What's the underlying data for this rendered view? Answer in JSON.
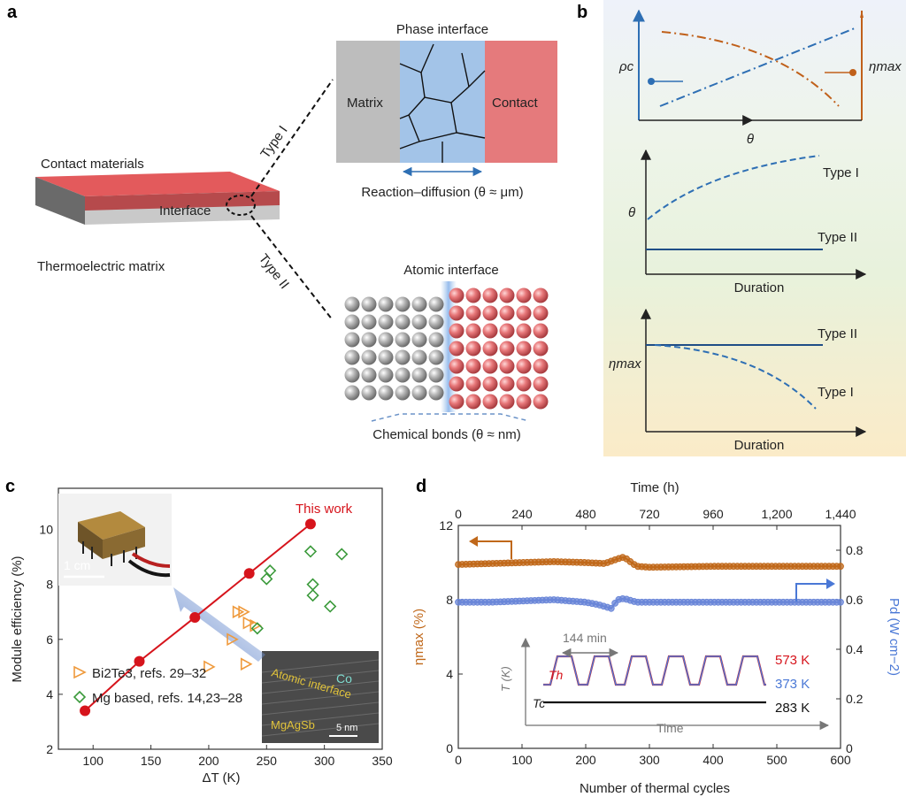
{
  "panels": {
    "a": "a",
    "b": "b",
    "c": "c",
    "d": "d"
  },
  "schematic": {
    "contact_materials": "Contact materials",
    "interface": "Interface",
    "thermoelectric_matrix": "Thermoelectric matrix",
    "type_i": "Type I",
    "type_ii": "Type II",
    "phase_interface_title": "Phase interface",
    "matrix": "Matrix",
    "contact": "Contact",
    "reaction_diffusion": "Reaction–diffusion (θ ≈ μm)",
    "atomic_interface_title": "Atomic interface",
    "chemical_bonds": "Chemical bonds (θ ≈ nm)",
    "colors": {
      "contact": "#e36466",
      "matrix": "#bdbdbd",
      "interface": "#a3c4e8"
    }
  },
  "chart_data": [
    {
      "type": "line",
      "panel": "b",
      "series": [
        {
          "name": "ρc",
          "trend": "increasing",
          "color": "#2e6fb4"
        },
        {
          "name": "ηmax",
          "trend": "decreasing",
          "color": "#c0601a"
        }
      ],
      "xlabel": "θ",
      "ylabel": "ρc",
      "y2label": "ηmax"
    },
    {
      "type": "line",
      "panel": "b",
      "series": [
        {
          "name": "Type I",
          "trend": "increasing"
        },
        {
          "name": "Type II",
          "trend": "constant"
        }
      ],
      "xlabel": "Duration",
      "ylabel": "θ"
    },
    {
      "type": "line",
      "panel": "b",
      "series": [
        {
          "name": "Type II",
          "trend": "constant"
        },
        {
          "name": "Type I",
          "trend": "decreasing"
        }
      ],
      "xlabel": "Duration",
      "ylabel": "ηmax"
    },
    {
      "type": "scatter",
      "panel": "c",
      "xlabel": "ΔT (K)",
      "ylabel": "Module efficiency (%)",
      "xlim": [
        70,
        350
      ],
      "ylim": [
        2,
        11.5
      ],
      "xticks": [
        "100",
        "150",
        "200",
        "250",
        "300",
        "350"
      ],
      "yticks": [
        "2",
        "4",
        "6",
        "8",
        "10"
      ],
      "series": [
        {
          "name": "This work",
          "color": "#d6141c",
          "x": [
            93,
            140,
            188,
            235,
            288
          ],
          "y": [
            3.4,
            5.2,
            6.8,
            8.4,
            10.2
          ]
        },
        {
          "name": "Bi2Te3, refs. 29–32",
          "color": "#ef9a3c",
          "x": [
            200,
            220,
            225,
            230,
            232,
            234,
            240
          ],
          "y": [
            5.0,
            6.0,
            7.0,
            7.0,
            5.1,
            6.6,
            6.5
          ]
        },
        {
          "name": "Mg based, refs. 14,23–28",
          "color": "#3b9a3b",
          "x": [
            242,
            250,
            253,
            288,
            290,
            290,
            305,
            315
          ],
          "y": [
            6.4,
            8.2,
            8.5,
            9.2,
            8.0,
            7.6,
            7.2,
            9.1
          ]
        }
      ],
      "inset_labels": {
        "scale_photo": "1 cm",
        "co": "Co",
        "atomic_interface": "Atomic interface",
        "mgagsb": "MgAgSb",
        "scale_tem": "5 nm"
      }
    },
    {
      "type": "scatter",
      "panel": "d",
      "xlabel": "Number of thermal cycles",
      "x2label": "Time (h)",
      "ylabel": "ηmax (%)",
      "y2label": "Pd (W cm−2)",
      "xlim": [
        0,
        600
      ],
      "x2lim": [
        0,
        1440
      ],
      "ylim": [
        0,
        12
      ],
      "y2lim": [
        0,
        0.9
      ],
      "xticks": [
        "0",
        "100",
        "200",
        "300",
        "400",
        "500",
        "600"
      ],
      "x2ticks": [
        "0",
        "240",
        "480",
        "720",
        "960",
        "1,200",
        "1,440"
      ],
      "yticks": [
        "0",
        "4",
        "8",
        "12"
      ],
      "y2ticks": [
        "0",
        "0.2",
        "0.4",
        "0.6",
        "0.8"
      ],
      "series": [
        {
          "name": "ηmax",
          "color": "#c0681a",
          "axis": "left",
          "x": [
            0,
            50,
            100,
            150,
            200,
            230,
            250,
            260,
            280,
            300,
            400,
            500,
            600
          ],
          "y": [
            9.9,
            9.95,
            10.0,
            10.05,
            10.0,
            9.95,
            10.2,
            10.3,
            9.8,
            9.75,
            9.8,
            9.8,
            9.8
          ]
        },
        {
          "name": "Pd",
          "color": "#6a86d8",
          "axis": "right",
          "x": [
            0,
            50,
            100,
            150,
            200,
            220,
            240,
            250,
            260,
            280,
            300,
            400,
            500,
            600
          ],
          "y": [
            0.59,
            0.59,
            0.595,
            0.6,
            0.59,
            0.58,
            0.565,
            0.6,
            0.605,
            0.59,
            0.59,
            0.59,
            0.59,
            0.59
          ]
        }
      ],
      "inset": {
        "period": "144 min",
        "th": "Th",
        "tc": "Tc",
        "ylabel": "T (K)",
        "xlabel": "Time",
        "t_high": "573 K",
        "t_mid": "373 K",
        "t_low": "283 K"
      }
    }
  ]
}
